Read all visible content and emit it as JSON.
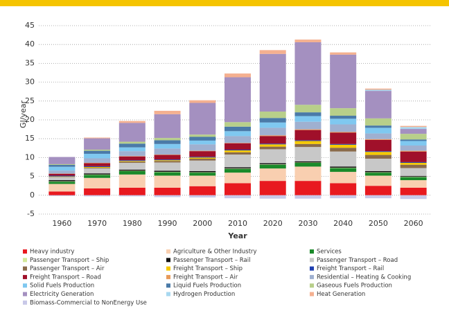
{
  "chart_data": {
    "type": "stacked_bar",
    "xlabel": "Year",
    "ylabel": "GJ/year",
    "categories": [
      "1960",
      "1970",
      "1980",
      "1990",
      "2000",
      "2010",
      "2020",
      "2030",
      "2040",
      "2050",
      "2060"
    ],
    "ylim": [
      -5,
      45
    ],
    "yticks": [
      -5,
      0,
      5,
      10,
      15,
      20,
      25,
      30,
      35,
      40,
      45
    ],
    "grid": true,
    "series": [
      {
        "name": "Heavy industry",
        "color": "#e8191f",
        "values": [
          1.0,
          1.8,
          2.0,
          2.0,
          2.4,
          3.2,
          3.8,
          3.8,
          3.2,
          2.5,
          2.0
        ]
      },
      {
        "name": "Agriculture & Other Industry",
        "color": "#f9cfb0",
        "values": [
          2.0,
          2.8,
          3.5,
          3.2,
          2.8,
          2.8,
          3.3,
          3.8,
          3.0,
          2.7,
          2.0
        ]
      },
      {
        "name": "Services",
        "color": "#1a8a2a",
        "values": [
          0.6,
          0.8,
          0.9,
          0.9,
          0.8,
          1.0,
          1.0,
          1.0,
          1.0,
          0.8,
          0.8
        ]
      },
      {
        "name": "Passenger Transport – Ship",
        "color": "#d4e89a",
        "values": [
          0.1,
          0.1,
          0.1,
          0.1,
          0.1,
          0.1,
          0.1,
          0.1,
          0.1,
          0.1,
          0.1
        ]
      },
      {
        "name": "Passenger Transport – Rail",
        "color": "#111111",
        "values": [
          0.3,
          0.3,
          0.3,
          0.3,
          0.3,
          0.3,
          0.3,
          0.3,
          0.3,
          0.3,
          0.2
        ]
      },
      {
        "name": "Passenger Transport – Road",
        "color": "#c8c8c8",
        "values": [
          0.8,
          1.3,
          1.8,
          2.2,
          2.8,
          3.4,
          3.7,
          3.8,
          4.0,
          3.3,
          2.1
        ]
      },
      {
        "name": "Passenger Transport – Air",
        "color": "#8a6a4a",
        "values": [
          0.1,
          0.2,
          0.3,
          0.4,
          0.5,
          0.6,
          0.7,
          0.8,
          1.0,
          1.0,
          0.9
        ]
      },
      {
        "name": "Freight Transport – Ship",
        "color": "#f5c800",
        "values": [
          0.1,
          0.2,
          0.2,
          0.2,
          0.3,
          0.5,
          0.6,
          0.8,
          0.8,
          0.8,
          0.5
        ]
      },
      {
        "name": "Freight Transport – Rail",
        "color": "#1f3fb0",
        "values": [
          0.2,
          0.2,
          0.2,
          0.2,
          0.2,
          0.2,
          0.2,
          0.2,
          0.2,
          0.2,
          0.2
        ]
      },
      {
        "name": "Freight Transport – Road",
        "color": "#a0102a",
        "values": [
          0.5,
          0.8,
          1.0,
          1.2,
          1.5,
          1.7,
          2.0,
          2.7,
          3.0,
          3.0,
          2.8
        ]
      },
      {
        "name": "Freight Transport – Air",
        "color": "#e89a5a",
        "values": [
          0.05,
          0.1,
          0.1,
          0.1,
          0.1,
          0.1,
          0.2,
          0.2,
          0.2,
          0.2,
          0.2
        ]
      },
      {
        "name": "Residential – Heating & Cooking",
        "color": "#9fb0d0",
        "values": [
          0.8,
          1.2,
          1.3,
          1.6,
          1.7,
          1.8,
          2.0,
          2.0,
          2.0,
          1.5,
          1.4
        ]
      },
      {
        "name": "Solid Fuels Production",
        "color": "#7fc8f0",
        "values": [
          1.0,
          1.2,
          1.0,
          1.2,
          1.0,
          1.3,
          1.4,
          1.5,
          1.5,
          1.5,
          1.2
        ]
      },
      {
        "name": "Liquid Fuels Production",
        "color": "#4a7aa8",
        "values": [
          0.5,
          0.8,
          1.0,
          1.0,
          1.0,
          1.2,
          1.2,
          1.0,
          0.8,
          0.6,
          0.4
        ]
      },
      {
        "name": "Gaseous Fuels Production",
        "color": "#b8cf8a",
        "values": [
          0.2,
          0.3,
          0.5,
          0.6,
          0.6,
          1.2,
          1.7,
          2.0,
          2.0,
          1.9,
          1.5
        ]
      },
      {
        "name": "Electricity Generation",
        "color": "#a490c0",
        "values": [
          1.9,
          3.0,
          5.0,
          6.3,
          8.4,
          11.9,
          15.3,
          16.6,
          14.2,
          7.3,
          1.3
        ]
      },
      {
        "name": "Hydrogen Production",
        "color": "#a8d8f0",
        "values": [
          0,
          0,
          0,
          0,
          0,
          0,
          0,
          0,
          0,
          0.3,
          0.5
        ]
      },
      {
        "name": "Heat Generation",
        "color": "#f4b090",
        "values": [
          0,
          0.2,
          0.5,
          0.9,
          0.7,
          1.0,
          1.0,
          0.7,
          0.6,
          0.3,
          0.3
        ]
      },
      {
        "name": "Biomass-Commercial to NonEnergy Use",
        "color": "#c8c8e8",
        "values": [
          -0.2,
          -0.3,
          -0.3,
          -0.5,
          -0.6,
          -0.8,
          -0.9,
          -0.9,
          -0.8,
          -0.8,
          -1.0
        ]
      }
    ]
  }
}
